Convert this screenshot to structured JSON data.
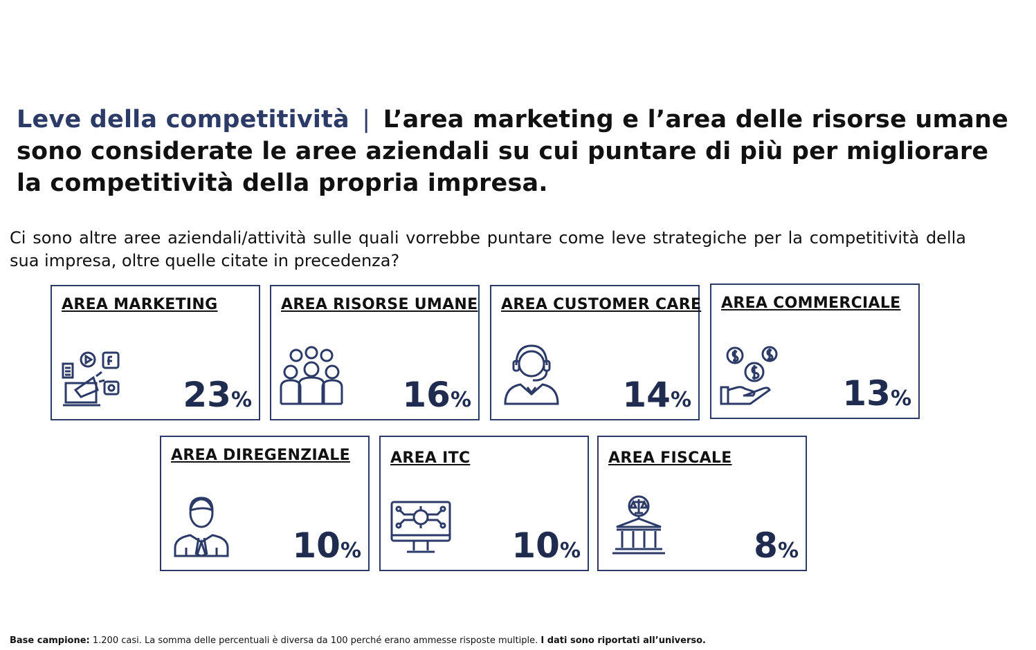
{
  "title": {
    "lead": "Leve della competitività",
    "separator": "|",
    "rest": "L’area marketing e l’area delle risorse umane sono considerate le aree aziendali su cui puntare di più per migliorare la competitività della propria impresa."
  },
  "question": "Ci sono altre aree aziendali/attività sulle quali vorrebbe puntare come leve strategiche per la competitività della sua impresa, oltre quelle citate in precedenza?",
  "cards": [
    {
      "label": "AREA MARKETING",
      "value": "23",
      "unit": "%",
      "icon": "marketing-megaphone-icon"
    },
    {
      "label": "AREA RISORSE UMANE",
      "value": "16",
      "unit": "%",
      "icon": "people-group-icon"
    },
    {
      "label": "AREA CUSTOMER CARE",
      "value": "14",
      "unit": "%",
      "icon": "headset-operator-icon"
    },
    {
      "label": "AREA COMMERCIALE",
      "value": "13",
      "unit": "%",
      "icon": "money-hand-icon"
    },
    {
      "label": "AREA DIREGENZIALE",
      "value": "10",
      "unit": "%",
      "icon": "manager-icon"
    },
    {
      "label": "AREA ITC",
      "value": "10",
      "unit": "%",
      "icon": "computer-circuit-icon"
    },
    {
      "label": "AREA FISCALE",
      "value": "8",
      "unit": "%",
      "icon": "tax-institution-icon"
    }
  ],
  "footer": {
    "label": "Base campione:",
    "text": " 1.200 casi. La somma delle percentuali è diversa da 100 perché erano ammesse risposte multiple. ",
    "note": "I dati sono riportati all’universo."
  },
  "colors": {
    "accent": "#2b3a67",
    "value": "#1f2b4f"
  }
}
